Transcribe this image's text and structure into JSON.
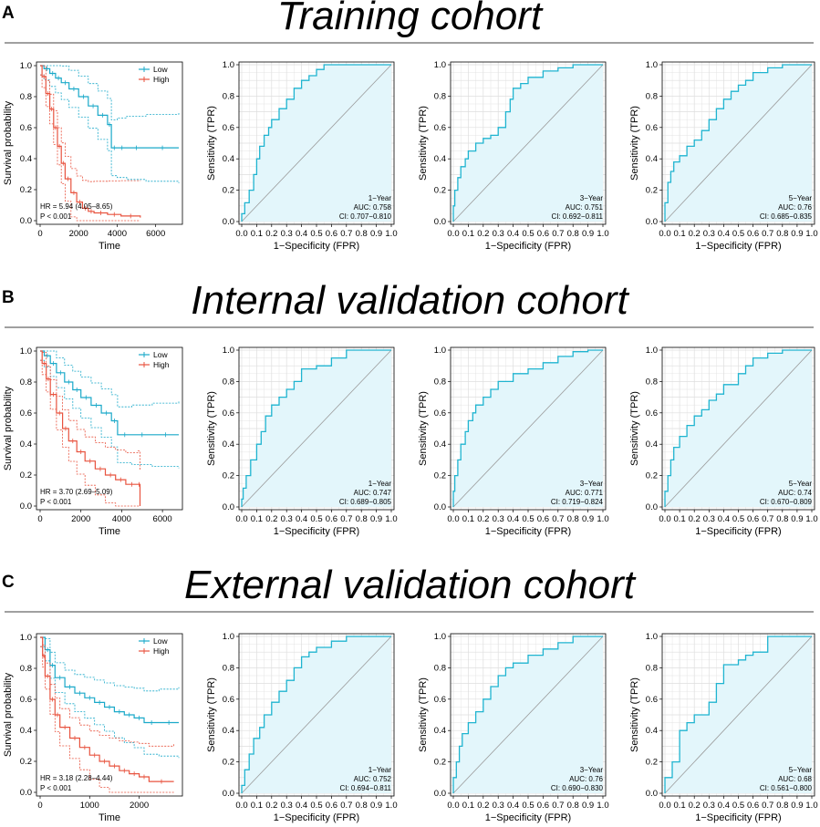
{
  "colors": {
    "low": "#1aa9c9",
    "high": "#e8533f",
    "roc": "#1fb4d0",
    "rocfill": "#e3f6fb",
    "grid": "#dedede",
    "diag": "#9a9a9a"
  },
  "sections": [
    {
      "letter": "A",
      "title": "Training cohort"
    },
    {
      "letter": "B",
      "title": "Internal validation cohort"
    },
    {
      "letter": "C",
      "title": "External validation cohort"
    }
  ],
  "chart_data": [
    {
      "type": "line",
      "panel": "A",
      "subtype": "kaplan-meier",
      "xlabel": "Time",
      "ylabel": "Survival probability",
      "xlim": [
        0,
        7200
      ],
      "ylim": [
        0,
        1
      ],
      "xticks": [
        "0",
        "2000",
        "4000",
        "6000"
      ],
      "yticks": [
        "0.0",
        "0.2",
        "0.4",
        "0.6",
        "0.8",
        "1.0"
      ],
      "legend": [
        "Low",
        "High"
      ],
      "hr_text": "HR = 5.94 (4.05–8.65)",
      "p_text": "P < 0.001",
      "series": [
        {
          "name": "Low",
          "x": [
            0,
            200,
            500,
            800,
            1100,
            1500,
            2000,
            2500,
            3000,
            3500,
            3700,
            4000,
            4500,
            5500,
            7200
          ],
          "y": [
            1,
            0.98,
            0.95,
            0.92,
            0.89,
            0.85,
            0.8,
            0.74,
            0.68,
            0.62,
            0.47,
            0.47,
            0.47,
            0.47,
            0.47
          ]
        },
        {
          "name": "High",
          "x": [
            0,
            100,
            300,
            500,
            700,
            900,
            1100,
            1300,
            1600,
            1900,
            2200,
            2500,
            2800,
            3500,
            4200,
            5200
          ],
          "y": [
            1,
            0.93,
            0.82,
            0.72,
            0.6,
            0.48,
            0.37,
            0.27,
            0.18,
            0.12,
            0.08,
            0.06,
            0.05,
            0.04,
            0.03,
            0.02
          ]
        }
      ]
    },
    {
      "type": "line",
      "panel": "A",
      "subtype": "roc",
      "xlabel": "1−Specificity (FPR)",
      "ylabel": "Sensitivity (TPR)",
      "xlim": [
        0,
        1
      ],
      "ylim": [
        0,
        1
      ],
      "year_label": "1−Year",
      "auc_label": "AUC: 0.758",
      "ci_label": "CI: 0.707−0.810",
      "x": [
        0,
        0.02,
        0.05,
        0.08,
        0.1,
        0.12,
        0.15,
        0.18,
        0.2,
        0.25,
        0.3,
        0.35,
        0.4,
        0.45,
        0.5,
        0.55,
        0.6,
        0.7,
        1.0
      ],
      "y": [
        0,
        0.05,
        0.12,
        0.2,
        0.3,
        0.4,
        0.48,
        0.55,
        0.6,
        0.65,
        0.72,
        0.78,
        0.85,
        0.9,
        0.93,
        0.97,
        1.0,
        1.0,
        1.0
      ]
    },
    {
      "type": "line",
      "panel": "A",
      "subtype": "roc",
      "xlabel": "1−Specificity (FPR)",
      "ylabel": "Sensitivity (TPR)",
      "xlim": [
        0,
        1
      ],
      "ylim": [
        0,
        1
      ],
      "year_label": "3−Year",
      "auc_label": "AUC: 0.751",
      "ci_label": "CI: 0.692−0.811",
      "x": [
        0,
        0.01,
        0.03,
        0.05,
        0.08,
        0.1,
        0.15,
        0.2,
        0.25,
        0.3,
        0.35,
        0.38,
        0.4,
        0.45,
        0.5,
        0.6,
        0.7,
        0.8,
        0.9,
        1.0
      ],
      "y": [
        0,
        0.1,
        0.2,
        0.28,
        0.35,
        0.4,
        0.45,
        0.5,
        0.53,
        0.55,
        0.6,
        0.7,
        0.78,
        0.85,
        0.88,
        0.92,
        0.96,
        0.98,
        1.0,
        1.0
      ]
    },
    {
      "type": "line",
      "panel": "A",
      "subtype": "roc",
      "xlabel": "1−Specificity (FPR)",
      "ylabel": "Sensitivity (TPR)",
      "xlim": [
        0,
        1
      ],
      "ylim": [
        0,
        1
      ],
      "year_label": "5−Year",
      "auc_label": "AUC: 0.76",
      "ci_label": "CI: 0.685−0.835",
      "x": [
        0,
        0.02,
        0.04,
        0.06,
        0.1,
        0.15,
        0.2,
        0.25,
        0.3,
        0.35,
        0.4,
        0.45,
        0.5,
        0.55,
        0.6,
        0.7,
        0.8,
        0.9,
        1.0
      ],
      "y": [
        0,
        0.12,
        0.25,
        0.32,
        0.38,
        0.42,
        0.48,
        0.52,
        0.58,
        0.65,
        0.72,
        0.78,
        0.83,
        0.87,
        0.9,
        0.95,
        0.98,
        1.0,
        1.0
      ]
    },
    {
      "type": "line",
      "panel": "B",
      "subtype": "kaplan-meier",
      "xlabel": "Time",
      "ylabel": "Survival probability",
      "xlim": [
        0,
        6800
      ],
      "ylim": [
        0,
        1
      ],
      "xticks": [
        "0",
        "2000",
        "4000",
        "6000"
      ],
      "yticks": [
        "0.0",
        "0.2",
        "0.4",
        "0.6",
        "0.8",
        "1.0"
      ],
      "legend": [
        "Low",
        "High"
      ],
      "hr_text": "HR = 3.70 (2.69–5.09)",
      "p_text": "P < 0.001",
      "series": [
        {
          "name": "Low",
          "x": [
            0,
            200,
            500,
            800,
            1200,
            1600,
            2000,
            2500,
            3000,
            3500,
            3800,
            4500,
            5500,
            6800
          ],
          "y": [
            1,
            0.97,
            0.92,
            0.86,
            0.8,
            0.75,
            0.7,
            0.65,
            0.6,
            0.55,
            0.46,
            0.46,
            0.46,
            0.46
          ]
        },
        {
          "name": "High",
          "x": [
            0,
            100,
            300,
            500,
            800,
            1100,
            1400,
            1800,
            2200,
            2700,
            3200,
            3700,
            4200,
            4800,
            4900
          ],
          "y": [
            1,
            0.92,
            0.82,
            0.72,
            0.6,
            0.5,
            0.42,
            0.35,
            0.29,
            0.24,
            0.2,
            0.17,
            0.14,
            0.14,
            0.0
          ]
        }
      ]
    },
    {
      "type": "line",
      "panel": "B",
      "subtype": "roc",
      "xlabel": "1−Specificity (FPR)",
      "ylabel": "Sensitivity (TPR)",
      "xlim": [
        0,
        1
      ],
      "ylim": [
        0,
        1
      ],
      "year_label": "1−Year",
      "auc_label": "AUC: 0.747",
      "ci_label": "CI: 0.689−0.805",
      "x": [
        0,
        0.01,
        0.03,
        0.06,
        0.1,
        0.13,
        0.16,
        0.2,
        0.25,
        0.3,
        0.35,
        0.4,
        0.5,
        0.55,
        0.6,
        0.7,
        0.8,
        0.9,
        1.0
      ],
      "y": [
        0,
        0.05,
        0.12,
        0.2,
        0.3,
        0.4,
        0.48,
        0.58,
        0.65,
        0.7,
        0.75,
        0.8,
        0.88,
        0.9,
        0.9,
        0.95,
        1.0,
        1.0,
        1.0
      ]
    },
    {
      "type": "line",
      "panel": "B",
      "subtype": "roc",
      "xlabel": "1−Specificity (FPR)",
      "ylabel": "Sensitivity (TPR)",
      "xlim": [
        0,
        1
      ],
      "ylim": [
        0,
        1
      ],
      "year_label": "3−Year",
      "auc_label": "AUC: 0.771",
      "ci_label": "CI: 0.719−0.824",
      "x": [
        0,
        0.01,
        0.03,
        0.05,
        0.08,
        0.1,
        0.13,
        0.15,
        0.2,
        0.25,
        0.3,
        0.4,
        0.5,
        0.6,
        0.7,
        0.8,
        0.9,
        1.0
      ],
      "y": [
        0,
        0.1,
        0.2,
        0.3,
        0.4,
        0.48,
        0.55,
        0.6,
        0.65,
        0.7,
        0.75,
        0.8,
        0.85,
        0.88,
        0.92,
        0.96,
        0.99,
        1.0
      ]
    },
    {
      "type": "line",
      "panel": "B",
      "subtype": "roc",
      "xlabel": "1−Specificity (FPR)",
      "ylabel": "Sensitivity (TPR)",
      "xlim": [
        0,
        1
      ],
      "ylim": [
        0,
        1
      ],
      "year_label": "5−Year",
      "auc_label": "AUC: 0.74",
      "ci_label": "CI: 0.670−0.809",
      "x": [
        0,
        0.02,
        0.04,
        0.06,
        0.1,
        0.15,
        0.2,
        0.25,
        0.3,
        0.35,
        0.4,
        0.5,
        0.55,
        0.6,
        0.7,
        0.8,
        0.9,
        1.0
      ],
      "y": [
        0,
        0.1,
        0.2,
        0.3,
        0.38,
        0.45,
        0.52,
        0.58,
        0.62,
        0.68,
        0.72,
        0.78,
        0.85,
        0.9,
        0.95,
        0.98,
        1.0,
        1.0
      ]
    },
    {
      "type": "line",
      "panel": "C",
      "subtype": "kaplan-meier",
      "xlabel": "Time",
      "ylabel": "Survival probability",
      "xlim": [
        0,
        2800
      ],
      "ylim": [
        0,
        1
      ],
      "xticks": [
        "0",
        "1000",
        "2000"
      ],
      "yticks": [
        "0.0",
        "0.2",
        "0.4",
        "0.6",
        "0.8",
        "1.0"
      ],
      "legend": [
        "Low",
        "High"
      ],
      "hr_text": "HR = 3.18 (2.28–4.44)",
      "p_text": "P < 0.001",
      "series": [
        {
          "name": "Low",
          "x": [
            0,
            100,
            200,
            300,
            500,
            700,
            900,
            1100,
            1300,
            1500,
            1700,
            1900,
            2100,
            2400,
            2800
          ],
          "y": [
            1,
            0.92,
            0.82,
            0.74,
            0.68,
            0.64,
            0.61,
            0.58,
            0.55,
            0.52,
            0.5,
            0.48,
            0.45,
            0.45,
            0.45
          ]
        },
        {
          "name": "High",
          "x": [
            0,
            50,
            100,
            200,
            300,
            400,
            600,
            800,
            1000,
            1200,
            1400,
            1600,
            1800,
            2000,
            2200,
            2700
          ],
          "y": [
            1,
            0.88,
            0.75,
            0.6,
            0.5,
            0.42,
            0.35,
            0.29,
            0.24,
            0.2,
            0.17,
            0.14,
            0.12,
            0.1,
            0.07,
            0.07
          ]
        }
      ]
    },
    {
      "type": "line",
      "panel": "C",
      "subtype": "roc",
      "xlabel": "1−Specificity (FPR)",
      "ylabel": "Sensitivity (TPR)",
      "xlim": [
        0,
        1
      ],
      "ylim": [
        0,
        1
      ],
      "year_label": "1−Year",
      "auc_label": "AUC: 0.752",
      "ci_label": "CI: 0.694−0.811",
      "x": [
        0,
        0.02,
        0.05,
        0.08,
        0.12,
        0.15,
        0.2,
        0.25,
        0.3,
        0.35,
        0.4,
        0.45,
        0.5,
        0.6,
        0.7,
        0.8,
        0.9,
        1.0
      ],
      "y": [
        0,
        0.05,
        0.15,
        0.25,
        0.35,
        0.42,
        0.5,
        0.58,
        0.65,
        0.72,
        0.8,
        0.87,
        0.9,
        0.93,
        0.97,
        1.0,
        1.0,
        1.0
      ]
    },
    {
      "type": "line",
      "panel": "C",
      "subtype": "roc",
      "xlabel": "1−Specificity (FPR)",
      "ylabel": "Sensitivity (TPR)",
      "xlim": [
        0,
        1
      ],
      "ylim": [
        0,
        1
      ],
      "year_label": "3−Year",
      "auc_label": "AUC: 0.76",
      "ci_label": "CI: 0.690−0.830",
      "x": [
        0,
        0.02,
        0.04,
        0.06,
        0.1,
        0.15,
        0.2,
        0.25,
        0.3,
        0.35,
        0.4,
        0.5,
        0.6,
        0.7,
        0.8,
        0.9,
        1.0
      ],
      "y": [
        0,
        0.1,
        0.2,
        0.3,
        0.38,
        0.45,
        0.52,
        0.6,
        0.68,
        0.75,
        0.8,
        0.83,
        0.88,
        0.92,
        0.96,
        1.0,
        1.0
      ]
    },
    {
      "type": "line",
      "panel": "C",
      "subtype": "roc",
      "xlabel": "1−Specificity (FPR)",
      "ylabel": "Sensitivity (TPR)",
      "xlim": [
        0,
        1
      ],
      "ylim": [
        0,
        1
      ],
      "year_label": "5−Year",
      "auc_label": "AUC: 0.68",
      "ci_label": "CI: 0.561−0.800",
      "x": [
        0,
        0.05,
        0.1,
        0.15,
        0.2,
        0.3,
        0.35,
        0.4,
        0.5,
        0.55,
        0.6,
        0.7,
        0.75,
        0.8,
        1.0
      ],
      "y": [
        0,
        0.1,
        0.2,
        0.4,
        0.45,
        0.5,
        0.58,
        0.7,
        0.82,
        0.85,
        0.88,
        0.9,
        1.0,
        1.0,
        1.0
      ]
    }
  ]
}
